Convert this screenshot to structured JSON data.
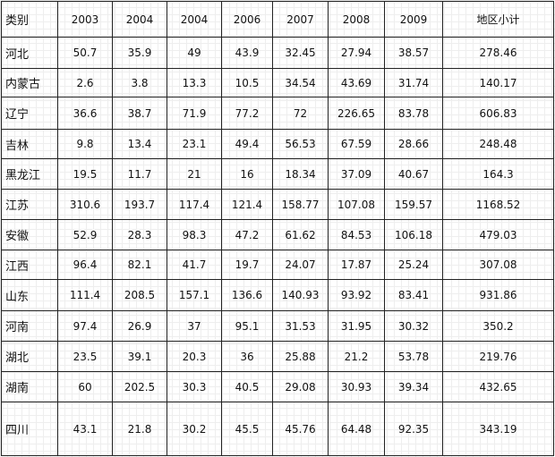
{
  "table": {
    "header": [
      "类别",
      "2003",
      "2004",
      "2004",
      "2006",
      "2007",
      "2008",
      "2009",
      "地区小计"
    ],
    "rows": [
      [
        "河北",
        "50.7",
        "35.9",
        "49",
        "43.9",
        "32.45",
        "27.94",
        "38.57",
        "278.46"
      ],
      [
        "内蒙古",
        "2.6",
        "3.8",
        "13.3",
        "10.5",
        "34.54",
        "43.69",
        "31.74",
        "140.17"
      ],
      [
        "辽宁",
        "36.6",
        "38.7",
        "71.9",
        "77.2",
        "72",
        "226.65",
        "83.78",
        "606.83"
      ],
      [
        "吉林",
        "9.8",
        "13.4",
        "23.1",
        "49.4",
        "56.53",
        "67.59",
        "28.66",
        "248.48"
      ],
      [
        "黑龙江",
        "19.5",
        "11.7",
        "21",
        "16",
        "18.34",
        "37.09",
        "40.67",
        "164.3"
      ],
      [
        "江苏",
        "310.6",
        "193.7",
        "117.4",
        "121.4",
        "158.77",
        "107.08",
        "159.57",
        "1168.52"
      ],
      [
        "安徽",
        "52.9",
        "28.3",
        "98.3",
        "47.2",
        "61.62",
        "84.53",
        "106.18",
        "479.03"
      ],
      [
        "江西",
        "96.4",
        "82.1",
        "41.7",
        "19.7",
        "24.07",
        "17.87",
        "25.24",
        "307.08"
      ],
      [
        "山东",
        "111.4",
        "208.5",
        "157.1",
        "136.6",
        "140.93",
        "93.92",
        "83.41",
        "931.86"
      ],
      [
        "河南",
        "97.4",
        "26.9",
        "37",
        "95.1",
        "31.53",
        "31.95",
        "30.32",
        "350.2"
      ],
      [
        "湖北",
        "23.5",
        "39.1",
        "20.3",
        "36",
        "25.88",
        "21.2",
        "53.78",
        "219.76"
      ],
      [
        "湖南",
        "60",
        "202.5",
        "30.3",
        "40.5",
        "29.08",
        "30.93",
        "39.34",
        "432.65"
      ],
      [
        "四川",
        "43.1",
        "21.8",
        "30.2",
        "45.5",
        "45.76",
        "64.48",
        "92.35",
        "343.19"
      ]
    ]
  }
}
